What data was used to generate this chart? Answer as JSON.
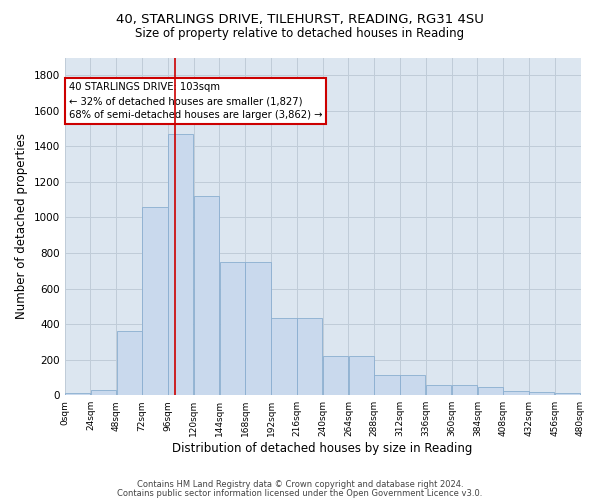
{
  "title_line1": "40, STARLINGS DRIVE, TILEHURST, READING, RG31 4SU",
  "title_line2": "Size of property relative to detached houses in Reading",
  "xlabel": "Distribution of detached houses by size in Reading",
  "ylabel": "Number of detached properties",
  "bin_edges": [
    0,
    24,
    48,
    72,
    96,
    120,
    144,
    168,
    192,
    216,
    240,
    264,
    288,
    312,
    336,
    360,
    384,
    408,
    432,
    456,
    480
  ],
  "bar_heights": [
    10,
    28,
    360,
    1060,
    1470,
    1120,
    750,
    750,
    435,
    435,
    220,
    220,
    115,
    115,
    55,
    55,
    45,
    25,
    20,
    15
  ],
  "bar_color": "#c9d9ed",
  "bar_edge_color": "#8aaed0",
  "property_size": 103,
  "red_line_color": "#cc0000",
  "annotation_text": "40 STARLINGS DRIVE: 103sqm\n← 32% of detached houses are smaller (1,827)\n68% of semi-detached houses are larger (3,862) →",
  "annotation_box_color": "#ffffff",
  "annotation_box_edge_color": "#cc0000",
  "grid_color": "#c0ccd8",
  "background_color": "#dce6f0",
  "ylim": [
    0,
    1900
  ],
  "yticks": [
    0,
    200,
    400,
    600,
    800,
    1000,
    1200,
    1400,
    1600,
    1800
  ],
  "footer_line1": "Contains HM Land Registry data © Crown copyright and database right 2024.",
  "footer_line2": "Contains public sector information licensed under the Open Government Licence v3.0."
}
